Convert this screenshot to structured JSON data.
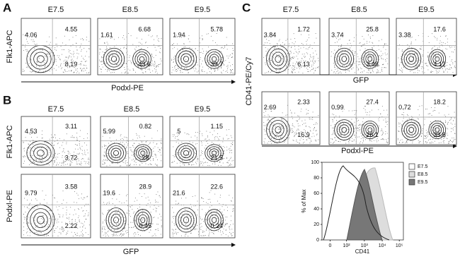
{
  "panels": [
    {
      "label": "A",
      "columns": [
        "E7.5",
        "E8.5",
        "E9.5"
      ],
      "y_labels": [
        "Flk1-APC"
      ],
      "x_labels": [
        "Podxl-PE"
      ],
      "rows": [
        [
          [
            "4.06",
            "4.55",
            "8.19"
          ],
          [
            "1.61",
            "6.68",
            "43.6"
          ],
          [
            "1.94",
            "5.78",
            "39.7"
          ]
        ]
      ]
    },
    {
      "label": "B",
      "columns": [
        "E7.5",
        "E8.5",
        "E9.5"
      ],
      "y_labels": [
        "Flk1-APC",
        "Podxl-PE"
      ],
      "x_labels": [
        "GFP"
      ],
      "rows": [
        [
          [
            "4.53",
            "3.11",
            "3.72"
          ],
          [
            "5.99",
            "0.82",
            "28"
          ],
          [
            "5",
            "1.15",
            "21.5"
          ]
        ],
        [
          [
            "9.79",
            "3.58",
            "2.22"
          ],
          [
            "19.6",
            "28.9",
            "0.45"
          ],
          [
            "21.6",
            "22.6",
            "0.24"
          ]
        ]
      ]
    },
    {
      "label": "C",
      "columns": [
        "E7.5",
        "E8.5",
        "E9.5"
      ],
      "y_labels": [
        "CD41-PE/Cy7"
      ],
      "x_labels": [
        "GFP",
        "Podxl-PE"
      ],
      "rows": [
        [
          [
            "3.84",
            "1.72",
            "6.13"
          ],
          [
            "3.74",
            "25.8",
            "3.48"
          ],
          [
            "3.38",
            "17.6",
            "4.12"
          ]
        ],
        [
          [
            "2.69",
            "2.33",
            "16.9"
          ],
          [
            "0.99",
            "27.4",
            "26.1"
          ],
          [
            "0.72",
            "18.2",
            "33.8"
          ]
        ]
      ]
    }
  ],
  "histogram": {
    "y_label": "% of Max",
    "x_label": "CD41",
    "yticks": [
      "0",
      "20",
      "40",
      "60",
      "80",
      "100"
    ],
    "xticks": [
      "0",
      "10²",
      "10³",
      "10⁴",
      "10⁵"
    ],
    "legend": [
      "E7.5",
      "E8.5",
      "E9.5"
    ]
  }
}
